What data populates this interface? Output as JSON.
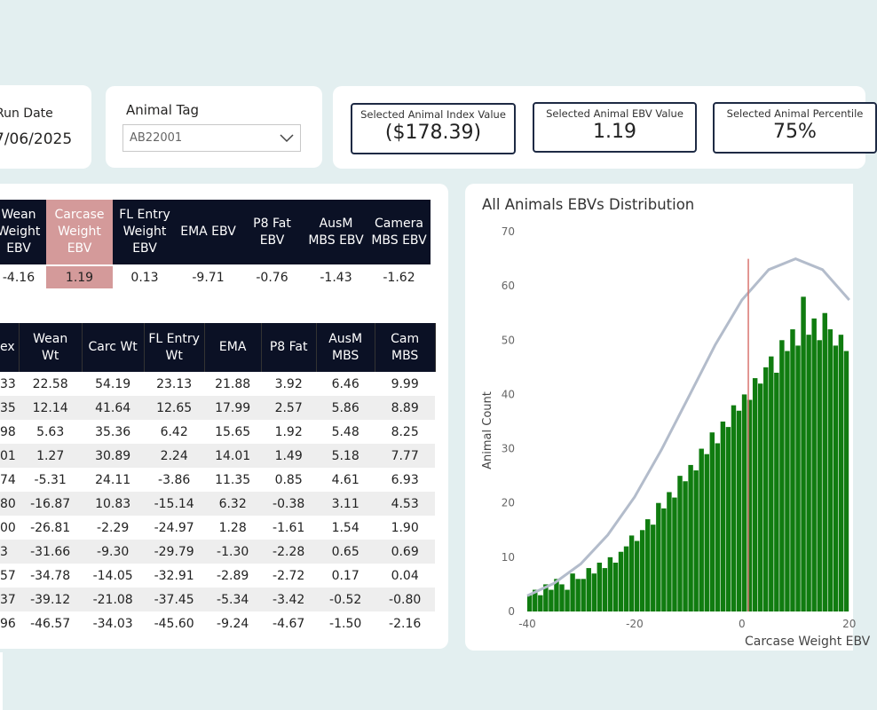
{
  "run_date": {
    "label": "Run Date",
    "value": "7/06/2025"
  },
  "animal_tag": {
    "label": "Animal Tag",
    "value": "AB22001"
  },
  "kpis": [
    {
      "label": "Selected Animal Index Value",
      "value": "($178.39)"
    },
    {
      "label": "Selected Animal EBV Value",
      "value": "1.19"
    },
    {
      "label": "Selected Animal Percentile",
      "value": "75%"
    }
  ],
  "ebv_table": {
    "headers": [
      "Wean Weight EBV",
      "Carcase Weight EBV",
      "FL Entry Weight EBV",
      "EMA EBV",
      "P8 Fat EBV",
      "AusM MBS EBV",
      "Camera MBS EBV"
    ],
    "rows": [
      [
        "-4.16",
        "1.19",
        "0.13",
        "-9.71",
        "-0.76",
        "-1.43",
        "-1.62"
      ]
    ]
  },
  "index_table": {
    "headers": [
      "ex",
      "Wean Wt",
      "Carc Wt",
      "FL Entry Wt",
      "EMA",
      "P8 Fat",
      "AusM MBS",
      "Cam MBS"
    ],
    "rows": [
      [
        "33",
        "22.58",
        "54.19",
        "23.13",
        "21.88",
        "3.92",
        "6.46",
        "9.99"
      ],
      [
        "35",
        "12.14",
        "41.64",
        "12.65",
        "17.99",
        "2.57",
        "5.86",
        "8.89"
      ],
      [
        "98",
        "5.63",
        "35.36",
        "6.42",
        "15.65",
        "1.92",
        "5.48",
        "8.25"
      ],
      [
        "01",
        "1.27",
        "30.89",
        "2.24",
        "14.01",
        "1.49",
        "5.18",
        "7.77"
      ],
      [
        "74",
        "-5.31",
        "24.11",
        "-3.86",
        "11.35",
        "0.85",
        "4.61",
        "6.93"
      ],
      [
        "80",
        "-16.87",
        "10.83",
        "-15.14",
        "6.32",
        "-0.38",
        "3.11",
        "4.53"
      ],
      [
        "00",
        "-26.81",
        "-2.29",
        "-24.97",
        "1.28",
        "-1.61",
        "1.54",
        "1.90"
      ],
      [
        "3",
        "-31.66",
        "-9.30",
        "-29.79",
        "-1.30",
        "-2.28",
        "0.65",
        "0.69"
      ],
      [
        "57",
        "-34.78",
        "-14.05",
        "-32.91",
        "-2.89",
        "-2.72",
        "0.17",
        "0.04"
      ],
      [
        "37",
        "-39.12",
        "-21.08",
        "-37.45",
        "-5.34",
        "-3.42",
        "-0.52",
        "-0.80"
      ],
      [
        "96",
        "-46.57",
        "-34.03",
        "-45.60",
        "-9.24",
        "-4.67",
        "-1.50",
        "-2.16"
      ]
    ]
  },
  "chart_data": {
    "type": "histogram",
    "title": "All Animals EBVs Distribution",
    "x_label": "Carcase Weight EBV",
    "y_label": "Animal Count",
    "bins": [
      -40,
      -39,
      -38,
      -37,
      -36,
      -35,
      -34,
      -33,
      -32,
      -31,
      -30,
      -29,
      -28,
      -27,
      -26,
      -25,
      -24,
      -23,
      -22,
      -21,
      -20,
      -19,
      -18,
      -17,
      -16,
      -15,
      -14,
      -13,
      -12,
      -11,
      -10,
      -9,
      -8,
      -7,
      -6,
      -5,
      -4,
      -3,
      -2,
      -1,
      0,
      1,
      2,
      3,
      4,
      5,
      6,
      7,
      8,
      9,
      10,
      11,
      12,
      13,
      14,
      15,
      16,
      17,
      18,
      19,
      20
    ],
    "values": [
      3,
      4,
      3,
      5,
      4,
      6,
      5,
      4,
      7,
      6,
      6,
      8,
      7,
      9,
      8,
      10,
      9,
      11,
      12,
      14,
      13,
      15,
      17,
      16,
      20,
      19,
      22,
      21,
      25,
      24,
      27,
      26,
      30,
      29,
      33,
      31,
      35,
      34,
      38,
      37,
      40,
      39,
      43,
      42,
      45,
      47,
      44,
      50,
      48,
      52,
      49,
      58,
      51,
      54,
      50,
      55,
      52,
      49,
      51,
      48
    ],
    "color": "#107c10",
    "curve": {
      "x": [
        -40,
        -35,
        -30,
        -25,
        -20,
        -15,
        -10,
        -5,
        0,
        5,
        10,
        15,
        20
      ],
      "values": [
        2.9,
        5.2,
        8.8,
        14.1,
        21.1,
        29.8,
        39.4,
        49.1,
        57.4,
        63.0,
        65,
        63.0,
        57.4
      ],
      "color": "#b3bccb"
    },
    "marker": {
      "x": 1.19,
      "y": 65,
      "color": "#d9756f"
    },
    "xlim": [
      -40,
      20.7
    ],
    "ylim": [
      0,
      70
    ],
    "xticks": [
      -40,
      -20,
      0,
      20
    ],
    "yticks": [
      0,
      10,
      20,
      30,
      40,
      50,
      60,
      70
    ]
  }
}
